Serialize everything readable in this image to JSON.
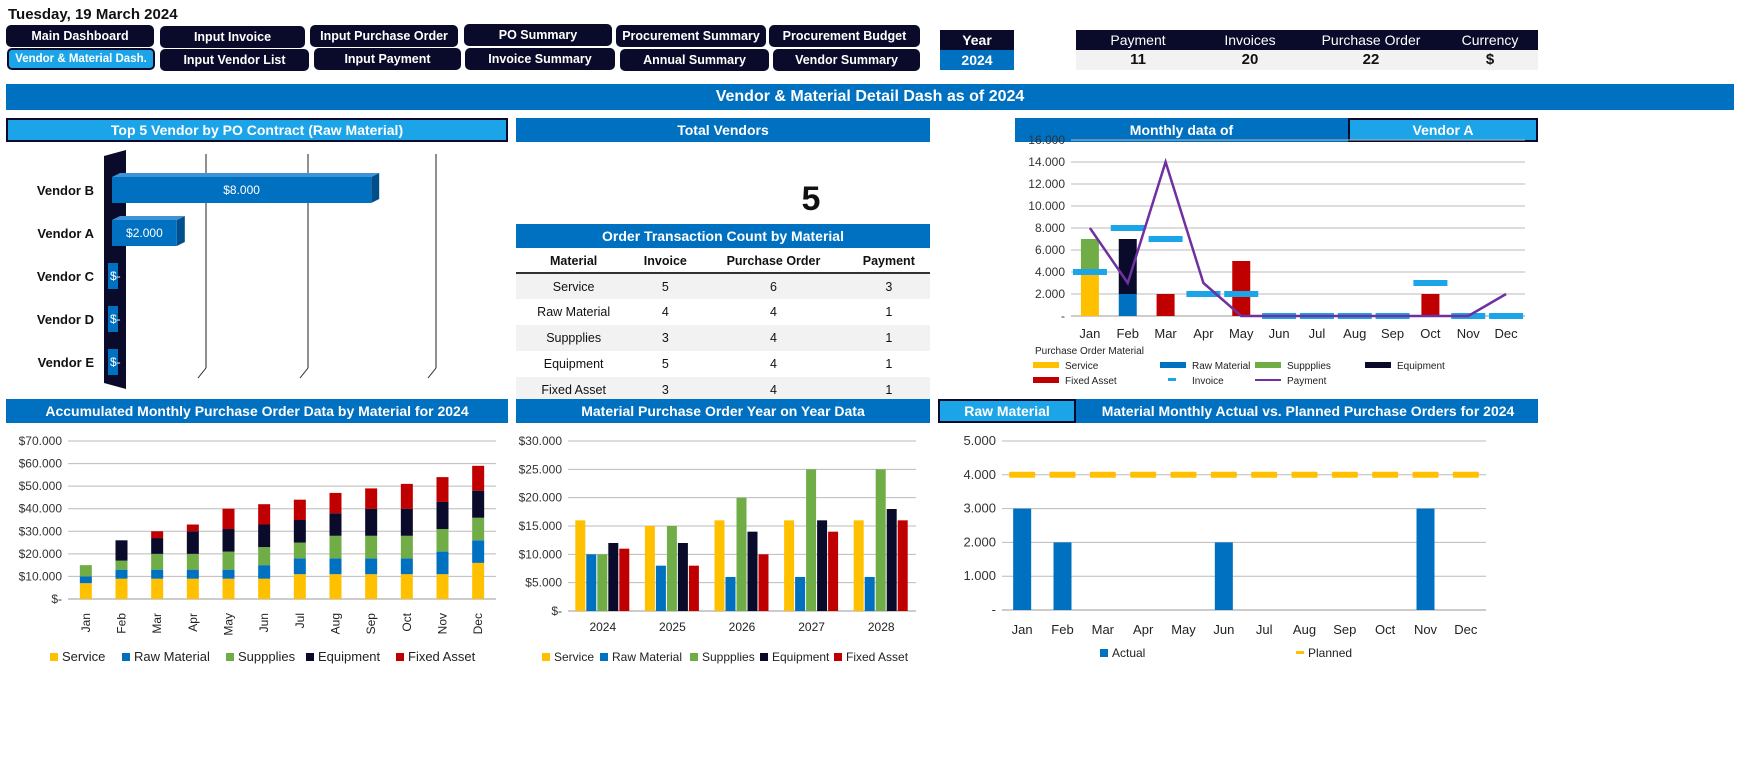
{
  "date": "Tuesday, 19 March 2024",
  "nav_row1": [
    "Main Dashboard",
    "Input Invoice",
    "Input Purchase Order",
    "PO Summary",
    "Procurement Summary",
    "Procurement Budget"
  ],
  "nav_row2": [
    "Vendor & Material Dash.",
    "Input  Vendor List",
    "Input Payment",
    "Invoice Summary",
    "Annual Summary",
    "Vendor Summary"
  ],
  "year": {
    "label": "Year",
    "value": "2024"
  },
  "summary": {
    "headers": [
      "Payment",
      "Invoices",
      "Purchase Order",
      "Currency"
    ],
    "values": [
      "11",
      "20",
      "22",
      "$"
    ]
  },
  "banner": "Vendor & Material Detail Dash as of 2024",
  "panels": {
    "top_vendor": "Top 5 Vendor by PO Contract (Raw Material)",
    "total_vendors": "Total Vendors",
    "total_vendors_value": "5",
    "order_table_title": "Order Transaction Count by Material",
    "monthly_title": "Monthly data of",
    "monthly_vendor": "Vendor A",
    "accum_title": "Accumulated Monthly Purchase Order Data by Material for 2024",
    "yoy_title": "Material Purchase Order Year on Year Data",
    "actual_material": "Raw Material",
    "actual_title": "Material Monthly Actual vs. Planned Purchase Orders for 2024"
  },
  "order_table": {
    "headers": [
      "Material",
      "Invoice",
      "Purchase Order",
      "Payment"
    ],
    "rows": [
      [
        "Service",
        "5",
        "6",
        "3"
      ],
      [
        "Raw Material",
        "4",
        "4",
        "1"
      ],
      [
        "Suppplies",
        "3",
        "4",
        "1"
      ],
      [
        "Equipment",
        "5",
        "4",
        "1"
      ],
      [
        "Fixed Asset",
        "3",
        "4",
        "1"
      ]
    ]
  },
  "colors": {
    "service": "#ffc000",
    "raw": "#0070c0",
    "supplies": "#70ad47",
    "equipment": "#0a0a2a",
    "fixed": "#c00000",
    "invoice": "#1ba4e8",
    "payment": "#7030a0",
    "navy": "#0a0a2a",
    "blue": "#0070c0"
  },
  "chart_data": [
    {
      "id": "top-vendor",
      "type": "bar",
      "orientation": "horizontal",
      "categories": [
        "Vendor B",
        "Vendor A",
        "Vendor C",
        "Vendor D",
        "Vendor E"
      ],
      "values": [
        8000,
        2000,
        0,
        0,
        0
      ],
      "data_labels": [
        "$8.000",
        "$2.000",
        "$-",
        "$-",
        "$-"
      ],
      "xlim": [
        0,
        10000
      ]
    },
    {
      "id": "monthly-vendor",
      "type": "bar",
      "categories": [
        "Jan",
        "Feb",
        "Mar",
        "Apr",
        "May",
        "Jun",
        "Jul",
        "Aug",
        "Sep",
        "Oct",
        "Nov",
        "Dec"
      ],
      "ylim": [
        0,
        16000
      ],
      "yticks": [
        "-",
        "2.000",
        "4.000",
        "6.000",
        "8.000",
        "10.000",
        "12.000",
        "14.000",
        "16.000"
      ],
      "legend_title": "Purchase Order Material",
      "stacks": [
        {
          "name": "Service",
          "values": [
            4000,
            0,
            0,
            0,
            0,
            0,
            0,
            0,
            0,
            0,
            0,
            0
          ]
        },
        {
          "name": "Raw Material",
          "values": [
            0,
            2000,
            0,
            0,
            0,
            0,
            0,
            0,
            0,
            0,
            0,
            0
          ]
        },
        {
          "name": "Suppplies",
          "values": [
            3000,
            0,
            0,
            0,
            0,
            0,
            0,
            0,
            0,
            0,
            0,
            0
          ]
        },
        {
          "name": "Equipment",
          "values": [
            0,
            5000,
            0,
            0,
            0,
            0,
            0,
            0,
            0,
            0,
            0,
            0
          ]
        },
        {
          "name": "Fixed Asset",
          "values": [
            0,
            0,
            2000,
            0,
            5000,
            0,
            0,
            0,
            0,
            2000,
            0,
            0
          ]
        }
      ],
      "invoice": {
        "name": "Invoice",
        "values": [
          4000,
          8000,
          7000,
          2000,
          2000,
          0,
          0,
          0,
          0,
          3000,
          0,
          0
        ]
      },
      "payment": {
        "name": "Payment",
        "values": [
          8000,
          3000,
          14000,
          3000,
          0,
          0,
          0,
          0,
          0,
          0,
          0,
          2000
        ]
      }
    },
    {
      "id": "accumulated",
      "type": "bar",
      "stacked": true,
      "categories": [
        "Jan",
        "Feb",
        "Mar",
        "Apr",
        "May",
        "Jun",
        "Jul",
        "Aug",
        "Sep",
        "Oct",
        "Nov",
        "Dec"
      ],
      "ylim": [
        0,
        70000
      ],
      "yticks": [
        "$-",
        "$10.000",
        "$20.000",
        "$30.000",
        "$40.000",
        "$50.000",
        "$60.000",
        "$70.000"
      ],
      "series": [
        {
          "name": "Service",
          "values": [
            7000,
            9000,
            9000,
            9000,
            9000,
            9000,
            11000,
            11000,
            11000,
            11000,
            11000,
            16000
          ]
        },
        {
          "name": "Raw Material",
          "values": [
            3000,
            4000,
            4000,
            4000,
            4000,
            6000,
            7000,
            7000,
            7000,
            7000,
            10000,
            10000
          ]
        },
        {
          "name": "Suppplies",
          "values": [
            5000,
            4000,
            7000,
            7000,
            8000,
            8000,
            7000,
            10000,
            10000,
            10000,
            10000,
            10000
          ]
        },
        {
          "name": "Equipment",
          "values": [
            0,
            9000,
            7000,
            10000,
            10000,
            10000,
            10000,
            10000,
            12000,
            12000,
            12000,
            12000
          ]
        },
        {
          "name": "Fixed Asset",
          "values": [
            0,
            0,
            3000,
            3000,
            9000,
            9000,
            9000,
            9000,
            9000,
            11000,
            11000,
            11000
          ]
        }
      ]
    },
    {
      "id": "year-on-year",
      "type": "bar",
      "categories": [
        "2024",
        "2025",
        "2026",
        "2027",
        "2028"
      ],
      "ylim": [
        0,
        30000
      ],
      "yticks": [
        "$-",
        "$5.000",
        "$10.000",
        "$15.000",
        "$20.000",
        "$25.000",
        "$30.000"
      ],
      "series": [
        {
          "name": "Service",
          "values": [
            16000,
            15000,
            16000,
            16000,
            16000
          ]
        },
        {
          "name": "Raw Material",
          "values": [
            10000,
            8000,
            6000,
            6000,
            6000
          ]
        },
        {
          "name": "Suppplies",
          "values": [
            10000,
            15000,
            20000,
            25000,
            25000
          ]
        },
        {
          "name": "Equipment",
          "values": [
            12000,
            12000,
            14000,
            16000,
            18000
          ]
        },
        {
          "name": "Fixed Asset",
          "values": [
            11000,
            8000,
            10000,
            14000,
            16000
          ]
        }
      ]
    },
    {
      "id": "actual-planned",
      "type": "bar",
      "categories": [
        "Jan",
        "Feb",
        "Mar",
        "Apr",
        "May",
        "Jun",
        "Jul",
        "Aug",
        "Sep",
        "Oct",
        "Nov",
        "Dec"
      ],
      "ylim": [
        0,
        5000
      ],
      "yticks": [
        "-",
        "1.000",
        "2.000",
        "3.000",
        "4.000",
        "5.000"
      ],
      "series": [
        {
          "name": "Actual",
          "values": [
            3000,
            2000,
            0,
            0,
            0,
            2000,
            0,
            0,
            0,
            0,
            3000,
            0
          ]
        },
        {
          "name": "Planned",
          "values": [
            4000,
            4000,
            4000,
            4000,
            4000,
            4000,
            4000,
            4000,
            4000,
            4000,
            4000,
            4000
          ]
        }
      ]
    }
  ]
}
